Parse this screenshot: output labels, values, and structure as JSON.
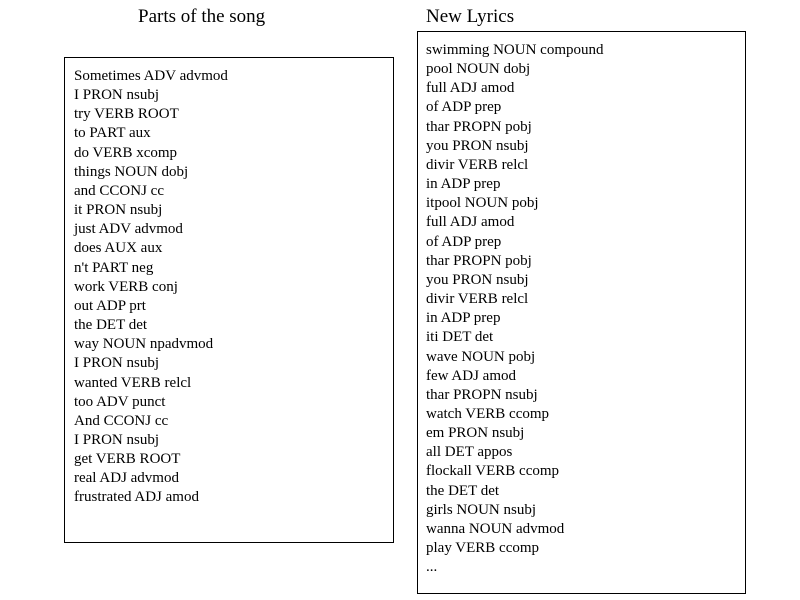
{
  "left": {
    "title": "Parts of the song",
    "tokens": [
      "Sometimes ADV advmod",
      "I PRON nsubj",
      "try VERB ROOT",
      "to PART aux",
      "do VERB xcomp",
      "things NOUN dobj",
      "and CCONJ cc",
      "it PRON nsubj",
      "just ADV advmod",
      "does AUX aux",
      "n't PART neg",
      "work VERB conj",
      "out ADP prt",
      "the DET det",
      "way NOUN npadvmod",
      "I PRON nsubj",
      "wanted VERB relcl",
      "too ADV punct",
      "And CCONJ cc",
      "I PRON nsubj",
      "get VERB ROOT",
      "real ADJ advmod",
      "frustrated ADJ amod"
    ]
  },
  "right": {
    "title": "New Lyrics",
    "tokens": [
      "swimming NOUN compound",
      "pool NOUN dobj",
      "full ADJ amod",
      "of ADP prep",
      "thar PROPN pobj",
      "you PRON nsubj",
      "divir VERB relcl",
      "in ADP prep",
      "itpool NOUN pobj",
      "full ADJ amod",
      "of ADP prep",
      "thar PROPN pobj",
      "you PRON nsubj",
      "divir VERB relcl",
      "in ADP prep",
      "iti DET det",
      "wave NOUN pobj",
      "few ADJ amod",
      "thar PROPN nsubj",
      "watch VERB ccomp",
      "em PRON nsubj",
      "all DET appos",
      "flockall VERB ccomp",
      "the DET det",
      "girls NOUN nsubj",
      "wanna NOUN advmod",
      "play VERB ccomp",
      "..."
    ]
  }
}
